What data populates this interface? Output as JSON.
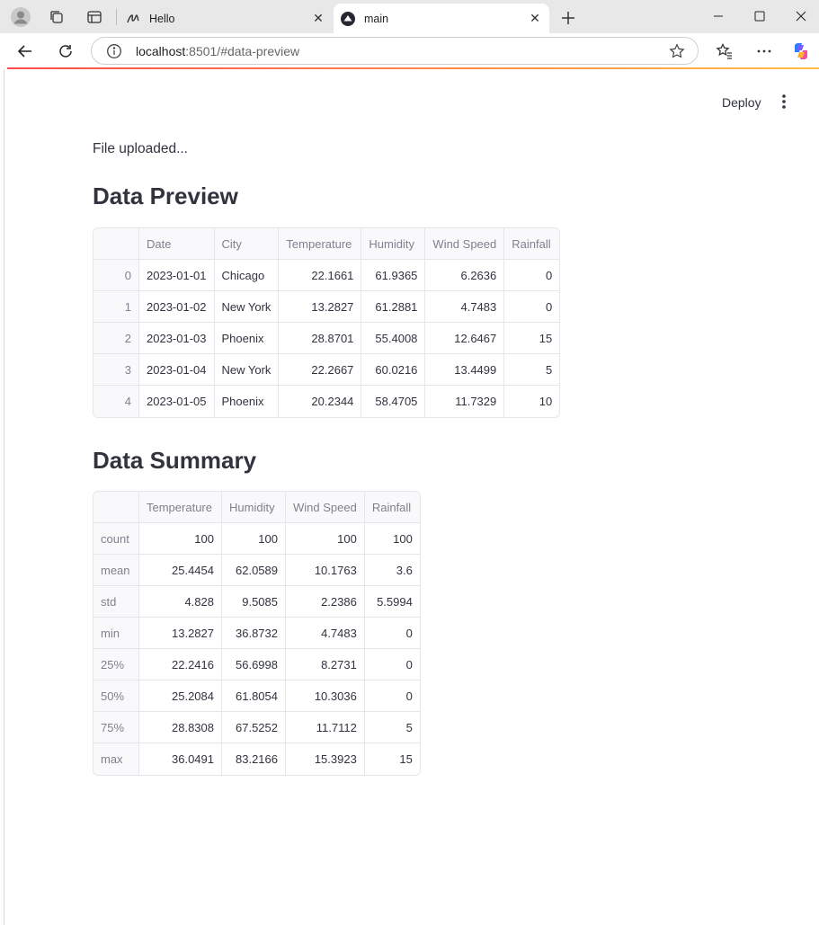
{
  "browser": {
    "tabs": [
      {
        "label": "Hello",
        "active": false
      },
      {
        "label": "main",
        "active": true
      }
    ],
    "address": {
      "host": "localhost",
      "rest": ":8501/#data-preview"
    }
  },
  "app": {
    "deploy_label": "Deploy",
    "status_text": "File uploaded...",
    "preview_heading": "Data Preview",
    "summary_heading": "Data Summary",
    "accent_gradient": [
      "#ff4b4b",
      "#ffbd45"
    ]
  },
  "preview": {
    "columns": [
      "",
      "Date",
      "City",
      "Temperature",
      "Humidity",
      "Wind Speed",
      "Rainfall"
    ],
    "rows": [
      [
        "0",
        "2023-01-01",
        "Chicago",
        "22.1661",
        "61.9365",
        "6.2636",
        "0"
      ],
      [
        "1",
        "2023-01-02",
        "New York",
        "13.2827",
        "61.2881",
        "4.7483",
        "0"
      ],
      [
        "2",
        "2023-01-03",
        "Phoenix",
        "28.8701",
        "55.4008",
        "12.6467",
        "15"
      ],
      [
        "3",
        "2023-01-04",
        "New York",
        "22.2667",
        "60.0216",
        "13.4499",
        "5"
      ],
      [
        "4",
        "2023-01-05",
        "Phoenix",
        "20.2344",
        "58.4705",
        "11.7329",
        "10"
      ]
    ]
  },
  "summary": {
    "columns": [
      "",
      "Temperature",
      "Humidity",
      "Wind Speed",
      "Rainfall"
    ],
    "rows": [
      [
        "count",
        "100",
        "100",
        "100",
        "100"
      ],
      [
        "mean",
        "25.4454",
        "62.0589",
        "10.1763",
        "3.6"
      ],
      [
        "std",
        "4.828",
        "9.5085",
        "2.2386",
        "5.5994"
      ],
      [
        "min",
        "13.2827",
        "36.8732",
        "4.7483",
        "0"
      ],
      [
        "25%",
        "22.2416",
        "56.6998",
        "8.2731",
        "0"
      ],
      [
        "50%",
        "25.2084",
        "61.8054",
        "10.3036",
        "0"
      ],
      [
        "75%",
        "28.8308",
        "67.5252",
        "11.7112",
        "5"
      ],
      [
        "max",
        "36.0491",
        "83.2166",
        "15.3923",
        "15"
      ]
    ]
  }
}
